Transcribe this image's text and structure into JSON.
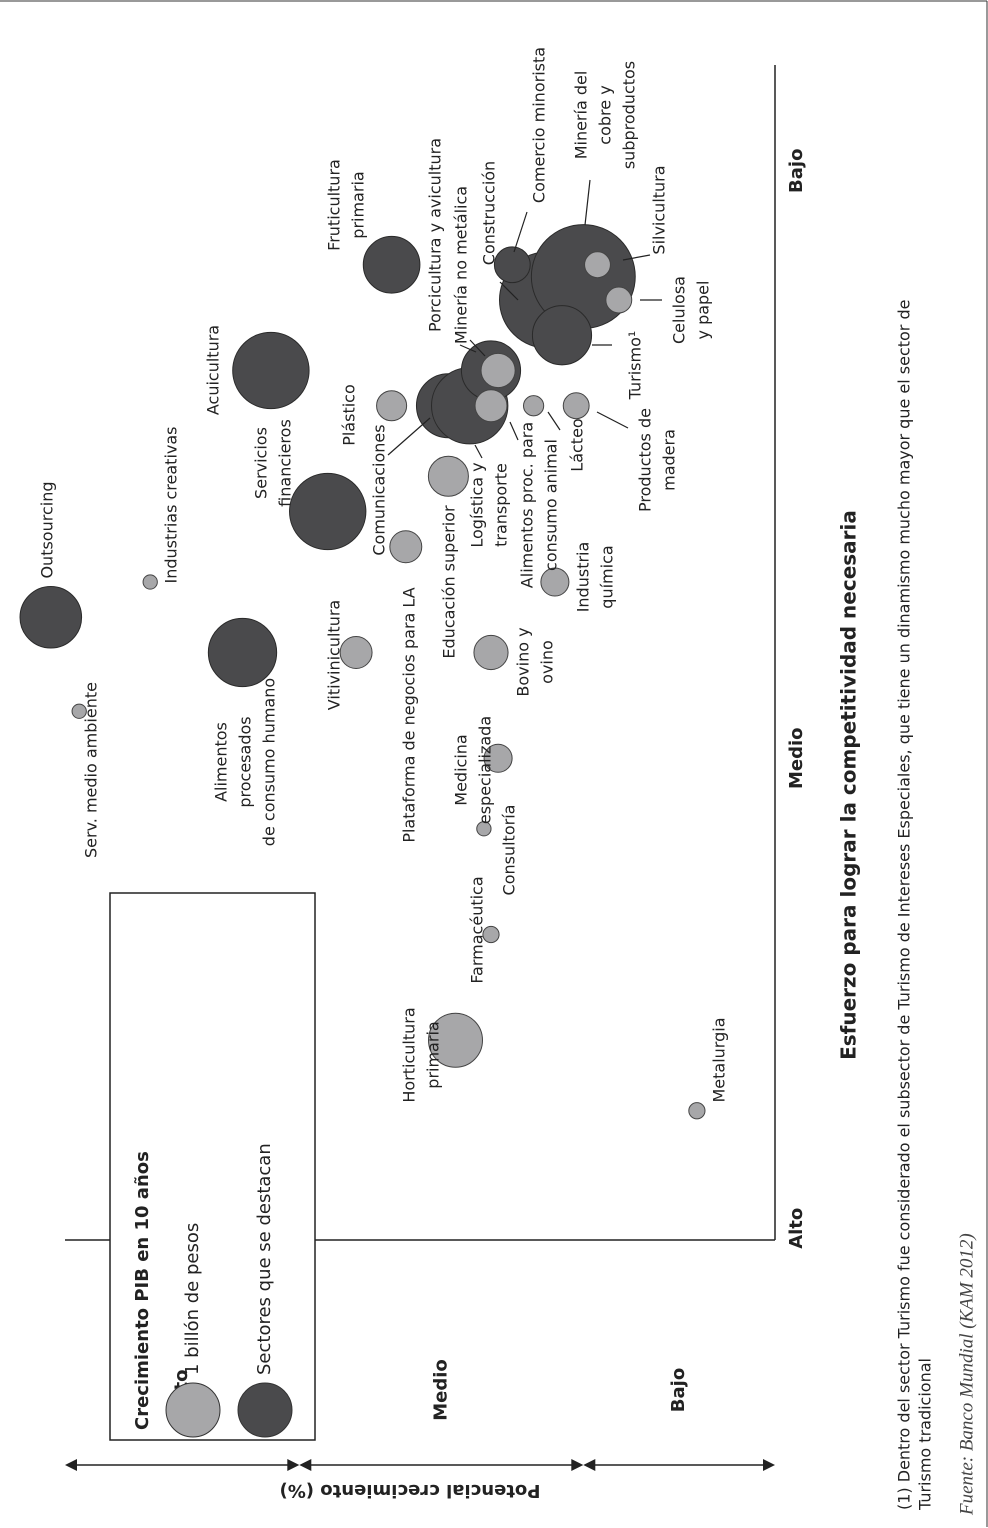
{
  "chart_data": {
    "type": "bubble",
    "x_label": "Esfuerzo para lograr la competitividad necesaria",
    "y_label": "Potencial crecimiento (%)",
    "xlim": [
      0,
      10
    ],
    "ylim": [
      0,
      10
    ],
    "xticks": [
      {
        "value": 0.1,
        "label": "Alto"
      },
      {
        "value": 4.1,
        "label": "Medio"
      },
      {
        "value": 9.1,
        "label": "Bajo"
      }
    ],
    "y_bands": [
      {
        "label": "Alto",
        "range": [
          6.7,
          10
        ]
      },
      {
        "label": "Medio",
        "range": [
          2.7,
          6.7
        ]
      },
      {
        "label": "Bajo",
        "range": [
          0,
          2.7
        ]
      }
    ],
    "legend": {
      "title": "Crecimiento PIB en 10 años",
      "size_label": "1 billón de pesos",
      "size_value": 1,
      "corner": "top-left"
    },
    "series": [
      {
        "name": "Sectores que se destacan",
        "color": "#4a4a4c",
        "labels": [
          [
            "Alimentos",
            "procesados",
            "de consumo humano"
          ],
          [
            "Outsourcing"
          ],
          [
            "Servicios",
            "financieros"
          ],
          [
            "Acuicultura"
          ],
          [
            "Fruticultura",
            "primaria"
          ],
          [
            "Comunicaciones"
          ],
          [
            "Logística y",
            "transporte"
          ],
          [
            "Porcicultura y avicultura"
          ],
          [
            "Construcción"
          ],
          [
            "Comercio minorista"
          ],
          [
            "Minería del",
            "cobre y",
            "subproductos"
          ],
          [
            "Turismo¹"
          ]
        ],
        "x": [
          5.0,
          5.3,
          6.2,
          7.4,
          8.3,
          7.1,
          7.1,
          7.4,
          8.0,
          8.3,
          8.2,
          7.7
        ],
        "y": [
          7.5,
          10.2,
          6.3,
          7.1,
          5.4,
          4.6,
          4.3,
          4.0,
          3.2,
          3.7,
          2.7,
          3.0
        ],
        "size": [
          1.6,
          1.3,
          2.0,
          2.0,
          1.1,
          1.4,
          2.0,
          1.2,
          3.2,
          0.44,
          3.7,
          1.2
        ]
      },
      {
        "color": "#a7a7a9",
        "labels": [
          [
            "Metalurgia"
          ],
          [
            "Horticultura",
            "primaria"
          ],
          [
            "Farmacéutica"
          ],
          [
            "Consultoría"
          ],
          [
            "Medicina",
            "especializada"
          ],
          [
            "Serv. medio ambiente"
          ],
          [
            "Vitivinicultura"
          ],
          [
            "Bovino y",
            "ovino"
          ],
          [
            "Industrias creativas"
          ],
          [
            "Industria",
            "química"
          ],
          [
            "Plataforma de negocios para LA"
          ],
          [
            "Educación superior"
          ],
          [
            "Plástico"
          ],
          [
            "Alimentos proc. para",
            "consumo animal"
          ],
          [
            "Minería no metálica"
          ],
          [
            "Lácteo"
          ],
          [
            "Productos de",
            "madera"
          ],
          [
            "Silvicultura"
          ],
          [
            "Celulosa",
            "y papel"
          ]
        ],
        "x": [
          1.1,
          1.7,
          2.6,
          3.5,
          4.1,
          4.5,
          5.0,
          5.0,
          5.6,
          5.6,
          5.9,
          6.5,
          7.1,
          7.1,
          7.4,
          7.1,
          7.1,
          8.3,
          8.0
        ],
        "y": [
          1.1,
          4.5,
          4.0,
          4.1,
          3.9,
          9.8,
          5.9,
          4.0,
          8.8,
          3.1,
          5.2,
          4.6,
          5.4,
          4.0,
          3.9,
          3.4,
          2.8,
          2.5,
          2.2
        ],
        "size": [
          0.09,
          1.0,
          0.09,
          0.07,
          0.27,
          0.07,
          0.35,
          0.4,
          0.07,
          0.27,
          0.35,
          0.55,
          0.31,
          0.35,
          0.4,
          0.14,
          0.23,
          0.23,
          0.23
        ]
      }
    ],
    "footnote": [
      "(1) Dentro del sector Turismo fue considerado el subsector de Turismo de Intereses Especiales, que tiene un dinamismo mucho mayor que el sector de",
      "Turismo tradicional"
    ],
    "source": "Fuente: Banco Mundial (KAM 2012)"
  }
}
